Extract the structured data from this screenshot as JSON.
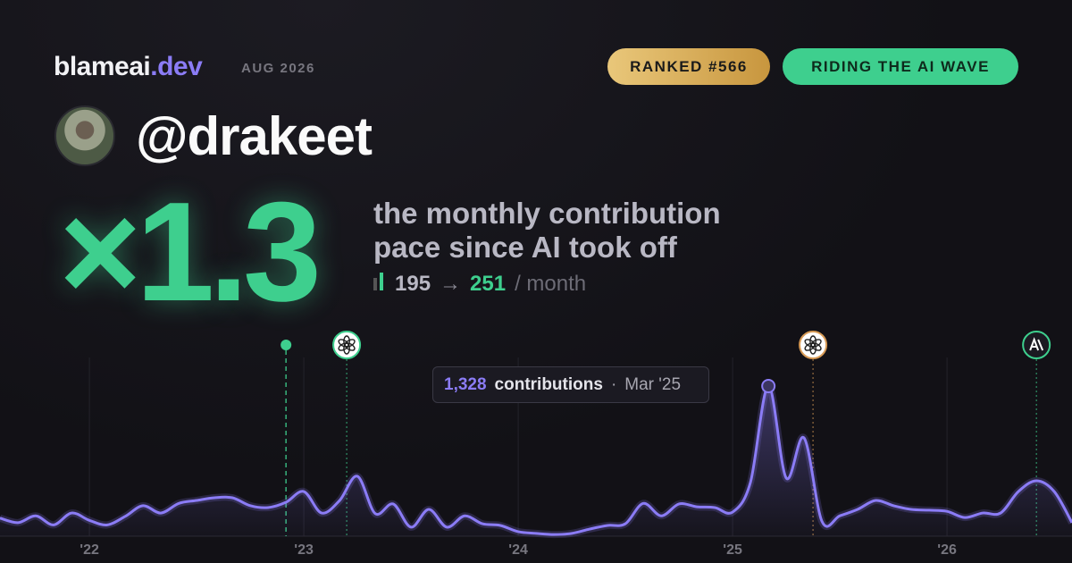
{
  "header": {
    "brand": "blameai",
    "brand_suffix": ".dev",
    "period": "AUG 2026",
    "badges": [
      "RANKED #566",
      "RIDING THE AI WAVE"
    ],
    "handle": "@drakeet"
  },
  "headline": {
    "multiplier": "×1.3",
    "line1": "the monthly contribution",
    "line2": "pace since AI took off",
    "before": "195",
    "arrow": "→",
    "after": "251",
    "unit": "/ month"
  },
  "tooltip": {
    "value": "1,328",
    "label": "contributions",
    "separator": "·",
    "date": "Mar '25"
  },
  "chart_data": {
    "type": "line",
    "x": [
      2021.583,
      2021.667,
      2021.75,
      2021.833,
      2021.917,
      2022,
      2022.083,
      2022.167,
      2022.25,
      2022.333,
      2022.417,
      2022.5,
      2022.583,
      2022.667,
      2022.75,
      2022.833,
      2022.917,
      2023,
      2023.083,
      2023.167,
      2023.25,
      2023.333,
      2023.417,
      2023.5,
      2023.583,
      2023.667,
      2023.75,
      2023.833,
      2023.917,
      2024,
      2024.083,
      2024.167,
      2024.25,
      2024.333,
      2024.417,
      2024.5,
      2024.583,
      2024.667,
      2024.75,
      2024.833,
      2024.917,
      2025,
      2025.083,
      2025.167,
      2025.25,
      2025.333,
      2025.417,
      2025.5,
      2025.583,
      2025.667,
      2025.75,
      2025.833,
      2025.917,
      2026,
      2026.083,
      2026.167,
      2026.25,
      2026.333,
      2026.417,
      2026.5,
      2026.583
    ],
    "series": [
      {
        "name": "contributions",
        "color": "#8b7cf6",
        "values": [
          160,
          120,
          180,
          100,
          205,
          140,
          100,
          175,
          270,
          205,
          290,
          316,
          340,
          340,
          270,
          253,
          300,
          395,
          205,
          316,
          530,
          200,
          285,
          80,
          237,
          80,
          180,
          110,
          95,
          40,
          25,
          15,
          25,
          63,
          95,
          110,
          290,
          180,
          285,
          260,
          253,
          213,
          475,
          1328,
          515,
          870,
          130,
          180,
          237,
          316,
          270,
          237,
          230,
          220,
          165,
          205,
          205,
          395,
          490,
          395,
          120
        ]
      }
    ],
    "xlim": [
      2021.583,
      2026.583
    ],
    "ylim": [
      0,
      1400
    ],
    "xticks": [
      {
        "value": 2022,
        "label": "'22"
      },
      {
        "value": 2023,
        "label": "'23"
      },
      {
        "value": 2024,
        "label": "'24"
      },
      {
        "value": 2025,
        "label": "'25"
      },
      {
        "value": 2026,
        "label": "'26"
      }
    ],
    "grid": true,
    "event_x": [
      2022.917,
      2023.2,
      2025.375,
      2026.417
    ]
  }
}
